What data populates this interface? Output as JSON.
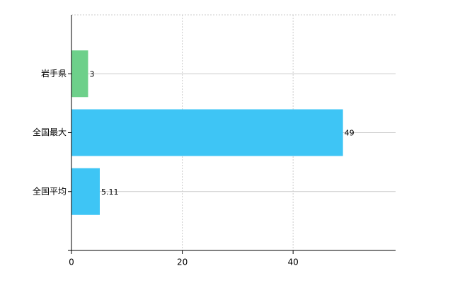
{
  "chart_data": {
    "type": "bar",
    "orientation": "horizontal",
    "categories": [
      "岩手県",
      "全国最大",
      "全国平均"
    ],
    "values": [
      3,
      49,
      5.11
    ],
    "colors": [
      "#6dd08a",
      "#3ec5f5",
      "#3ec5f5"
    ],
    "xlim": [
      0,
      58.5
    ],
    "xticks": [
      0,
      20,
      40
    ],
    "grid": true
  }
}
